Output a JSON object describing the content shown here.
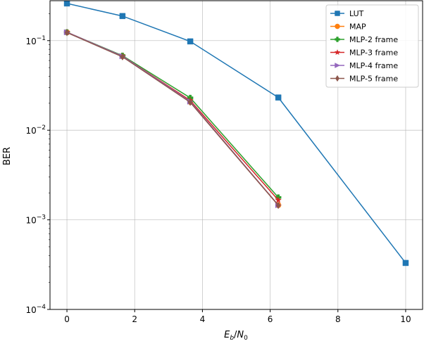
{
  "chart_data": {
    "type": "line",
    "title": "",
    "xlabel": "E_b/N_0",
    "xlabel_parts": {
      "main1": "E",
      "sub1": "b",
      "sep": "/",
      "main2": "N",
      "sub2": "0"
    },
    "ylabel": "BER",
    "yscale": "log",
    "xlim": [
      -0.5,
      10.5
    ],
    "ylim": [
      0.0001,
      0.279
    ],
    "grid": true,
    "legend": "top-right",
    "x_ticks": [
      0,
      2,
      4,
      6,
      8,
      10
    ],
    "x_tick_labels": [
      "0",
      "2",
      "4",
      "6",
      "8",
      "10"
    ],
    "y_ticks": [
      0.1,
      0.01,
      0.001,
      0.0001
    ],
    "y_tick_labels": [
      {
        "base": "10",
        "exp": "−1"
      },
      {
        "base": "10",
        "exp": "−2"
      },
      {
        "base": "10",
        "exp": "−3"
      },
      {
        "base": "10",
        "exp": "−4"
      }
    ],
    "series": [
      {
        "name": "LUT",
        "color": "#1f77b4",
        "marker": "square",
        "x": [
          0,
          1.64,
          3.64,
          6.24,
          10
        ],
        "y": [
          0.26,
          0.188,
          0.098,
          0.0232,
          0.00033
        ]
      },
      {
        "name": "MAP",
        "color": "#ff7f0e",
        "marker": "circle",
        "x": [
          0,
          1.64,
          3.64,
          6.24
        ],
        "y": [
          0.124,
          0.067,
          0.0207,
          0.00146
        ]
      },
      {
        "name": "MLP-2 frame",
        "color": "#2ca02c",
        "marker": "plus",
        "x": [
          0,
          1.64,
          3.64,
          6.24
        ],
        "y": [
          0.124,
          0.068,
          0.023,
          0.00178
        ]
      },
      {
        "name": "MLP-3 frame",
        "color": "#d62728",
        "marker": "star",
        "x": [
          0,
          1.64,
          3.64,
          6.24
        ],
        "y": [
          0.124,
          0.067,
          0.0215,
          0.00166
        ]
      },
      {
        "name": "MLP-4 frame",
        "color": "#9467bd",
        "marker": "triangle-right",
        "x": [
          0,
          1.64,
          3.64,
          6.24
        ],
        "y": [
          0.124,
          0.067,
          0.0209,
          0.00146
        ]
      },
      {
        "name": "MLP-5 frame",
        "color": "#8c564b",
        "marker": "diamond",
        "x": [
          0,
          1.64,
          3.64,
          6.24
        ],
        "y": [
          0.123,
          0.066,
          0.0205,
          0.00145
        ]
      }
    ]
  }
}
